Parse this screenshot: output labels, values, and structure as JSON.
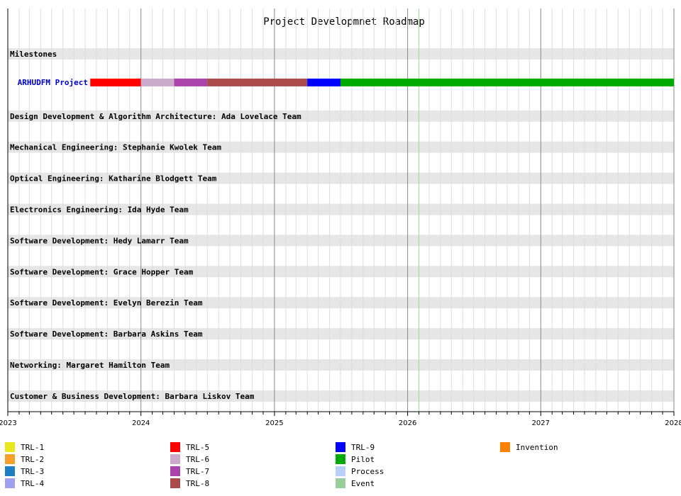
{
  "chart_data": {
    "type": "gantt",
    "title": "Project Developmnet Roadmap",
    "x_ticks": [
      "2023",
      "2024",
      "2025",
      "2026",
      "2027",
      "2028"
    ],
    "x_range": [
      "2023-01-01",
      "2028-01-01"
    ],
    "today_marker": "2026-02-01",
    "rows": [
      {
        "label": "Milestones",
        "kind": "header",
        "segments": []
      },
      {
        "label": "ARHUDFM Project",
        "kind": "project",
        "segments": [
          {
            "level": "TRL-5",
            "start": "2023-08-15",
            "end": "2024-01-01"
          },
          {
            "level": "TRL-6",
            "start": "2024-01-01",
            "end": "2024-04-01"
          },
          {
            "level": "TRL-7",
            "start": "2024-04-01",
            "end": "2024-07-01"
          },
          {
            "level": "TRL-8",
            "start": "2024-07-01",
            "end": "2025-04-01"
          },
          {
            "level": "TRL-9",
            "start": "2025-04-01",
            "end": "2025-07-01"
          },
          {
            "level": "Pilot",
            "start": "2025-07-01",
            "end": "2028-01-01"
          }
        ]
      },
      {
        "label": "Design Development & Algorithm Architecture: Ada Lovelace Team",
        "kind": "header",
        "segments": []
      },
      {
        "label": "Mechanical Engineering: Stephanie Kwolek Team",
        "kind": "header",
        "segments": []
      },
      {
        "label": "Optical Engineering: Katharine Blodgett Team",
        "kind": "header",
        "segments": []
      },
      {
        "label": "Electronics Engineering: Ida Hyde Team",
        "kind": "header",
        "segments": []
      },
      {
        "label": "Software Development: Hedy Lamarr Team",
        "kind": "header",
        "segments": []
      },
      {
        "label": "Software Development: Grace Hopper Team",
        "kind": "header",
        "segments": []
      },
      {
        "label": "Software Development: Evelyn Berezin Team",
        "kind": "header",
        "segments": []
      },
      {
        "label": "Software Development: Barbara Askins Team",
        "kind": "header",
        "segments": []
      },
      {
        "label": "Networking: Margaret Hamilton Team",
        "kind": "header",
        "segments": []
      },
      {
        "label": "Customer & Business Development: Barbara Liskov Team",
        "kind": "header",
        "segments": []
      }
    ],
    "legend": [
      {
        "name": "TRL-1",
        "color": "#e8e81a"
      },
      {
        "name": "TRL-2",
        "color": "#f5a02d"
      },
      {
        "name": "TRL-3",
        "color": "#1f7fc4"
      },
      {
        "name": "TRL-4",
        "color": "#a0a0f0"
      },
      {
        "name": "TRL-5",
        "color": "#ff0000"
      },
      {
        "name": "TRL-6",
        "color": "#ccaacc"
      },
      {
        "name": "TRL-7",
        "color": "#aa44aa"
      },
      {
        "name": "TRL-8",
        "color": "#aa4a4a"
      },
      {
        "name": "TRL-9",
        "color": "#0000ff"
      },
      {
        "name": "Pilot",
        "color": "#00aa00"
      },
      {
        "name": "Process",
        "color": "#b8d0f8"
      },
      {
        "name": "Event",
        "color": "#99cc99"
      },
      {
        "name": "Invention",
        "color": "#ff7f00"
      }
    ],
    "colors": {
      "row_band": "#e6e6e6",
      "project_label": "#0000cc",
      "year_grid": "#888888",
      "month_grid": "#dddddd",
      "today_line": "#99dd99"
    },
    "grid": true,
    "legend_position": "bottom"
  }
}
